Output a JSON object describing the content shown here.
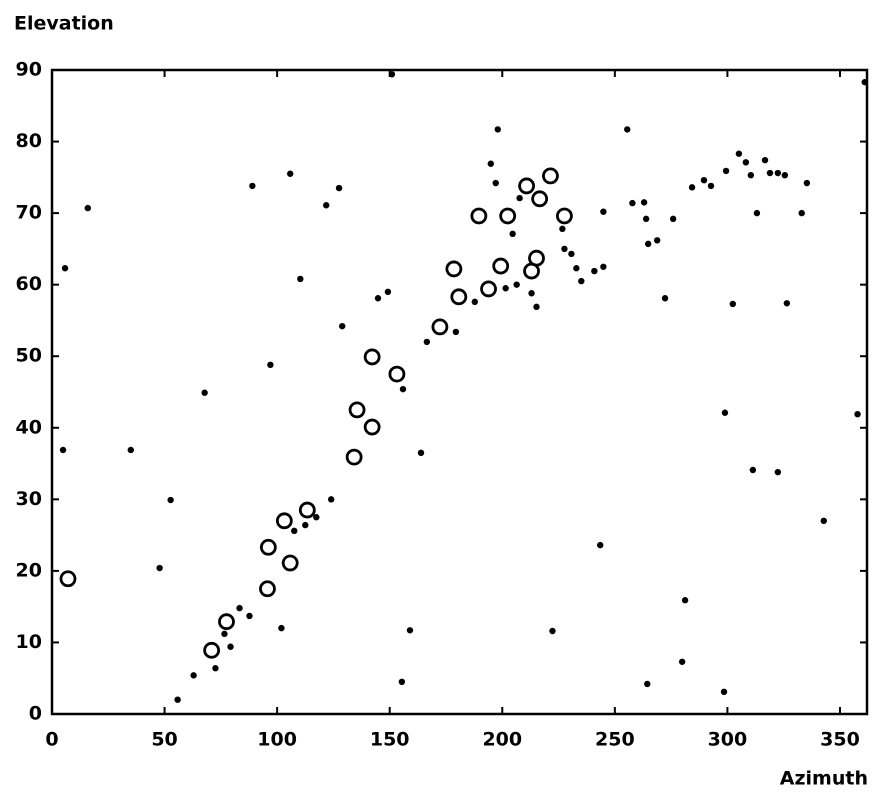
{
  "chart_data": {
    "type": "scatter",
    "ylabel": "Elevation",
    "xlabel": "Azimuth",
    "xlim": [
      0,
      362
    ],
    "ylim": [
      0,
      90
    ],
    "xticks": [
      0,
      50,
      100,
      150,
      200,
      250,
      300,
      350
    ],
    "yticks": [
      0,
      10,
      20,
      30,
      40,
      50,
      60,
      70,
      80,
      90
    ],
    "grid": false,
    "series": [
      {
        "marker": "ring",
        "color": "#000000",
        "x": [
          7.1,
          70.9,
          77.5,
          95.7,
          96.1,
          103.2,
          105.8,
          113.4,
          134.2,
          135.5,
          142.2,
          142.2,
          153.2,
          172.3,
          178.5,
          180.7,
          189.6,
          193.9,
          199.3,
          202.4,
          210.8,
          213.0,
          215.2,
          216.6,
          221.4,
          227.6
        ],
        "values": [
          18.9,
          8.9,
          12.9,
          17.5,
          23.3,
          27.0,
          21.1,
          28.5,
          35.9,
          42.5,
          40.1,
          49.9,
          47.5,
          54.1,
          62.2,
          58.3,
          69.6,
          59.4,
          62.6,
          69.6,
          73.8,
          61.9,
          63.7,
          72.0,
          75.2,
          69.6
        ]
      },
      {
        "marker": "dot",
        "color": "#000000",
        "x": [
          5.8,
          4.9,
          15.9,
          35.0,
          52.7,
          47.8,
          55.8,
          62.9,
          67.8,
          72.6,
          76.6,
          79.3,
          83.3,
          87.7,
          89.0,
          97.0,
          101.9,
          105.8,
          107.6,
          110.3,
          112.5,
          117.4,
          121.8,
          124.0,
          127.5,
          128.9,
          144.8,
          149.2,
          151.0,
          155.4,
          155.9,
          159.0,
          163.9,
          166.5,
          179.4,
          187.8,
          194.9,
          197.1,
          198.0,
          201.5,
          204.6,
          206.4,
          207.7,
          213.0,
          215.2,
          226.7,
          227.6,
          230.7,
          232.9,
          235.1,
          240.9,
          243.5,
          244.9,
          244.9,
          222.3,
          255.5,
          257.8,
          263.0,
          263.9,
          264.4,
          264.8,
          268.8,
          272.3,
          275.9,
          279.9,
          281.2,
          284.3,
          289.6,
          292.7,
          298.5,
          298.9,
          299.4,
          302.4,
          305.1,
          308.2,
          310.4,
          311.3,
          313.1,
          316.7,
          318.9,
          322.4,
          322.4,
          325.5,
          326.4,
          333.0,
          335.3,
          342.8,
          357.8,
          361.0
        ],
        "values": [
          62.3,
          36.9,
          70.7,
          36.9,
          29.9,
          20.4,
          2.0,
          5.4,
          44.9,
          6.4,
          11.2,
          9.4,
          14.8,
          13.7,
          73.8,
          48.8,
          12.0,
          75.5,
          25.6,
          60.8,
          26.4,
          27.5,
          71.1,
          30.0,
          73.5,
          54.2,
          58.1,
          59.0,
          89.4,
          4.5,
          45.4,
          11.7,
          36.5,
          52.0,
          53.4,
          57.6,
          76.9,
          74.2,
          81.7,
          59.5,
          67.1,
          60.0,
          72.1,
          58.8,
          56.9,
          67.8,
          65.0,
          64.3,
          62.3,
          60.5,
          61.9,
          23.6,
          62.5,
          70.2,
          11.6,
          81.7,
          71.4,
          71.5,
          69.2,
          4.2,
          65.7,
          66.2,
          58.1,
          69.2,
          7.3,
          15.9,
          73.6,
          74.6,
          73.8,
          3.1,
          42.1,
          75.9,
          57.3,
          78.3,
          77.1,
          75.3,
          34.1,
          70.0,
          77.4,
          75.6,
          75.6,
          33.8,
          75.3,
          57.4,
          70.0,
          74.2,
          27.0,
          41.9,
          88.3
        ]
      }
    ]
  }
}
